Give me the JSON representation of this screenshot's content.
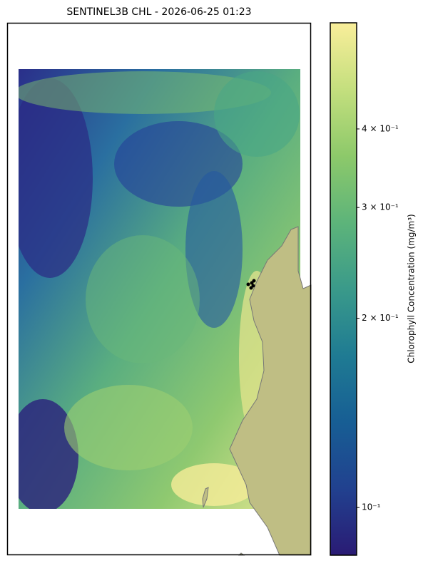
{
  "chart_data": {
    "type": "colorbar-map",
    "title": "SENTINEL3B CHL - 2026-06-25 01:23",
    "colorbar_label": "Chlorophyll Concentration (mg/m³)",
    "clim": [
      0.084,
      0.59
    ],
    "log_scale": true,
    "colormap": [
      "#2a1b74",
      "#21418f",
      "#175e94",
      "#1f7b93",
      "#3a9a8a",
      "#5db47a",
      "#8dc96a",
      "#c4df7e",
      "#f9ee9a"
    ],
    "colorbar_ticks": [
      {
        "value": 0.1,
        "label": "10⁻¹"
      },
      {
        "value": 0.2,
        "label": "2 × 10⁻¹"
      },
      {
        "value": 0.3,
        "label": "3 × 10⁻¹"
      },
      {
        "value": 0.4,
        "label": "4 × 10⁻¹"
      }
    ]
  }
}
